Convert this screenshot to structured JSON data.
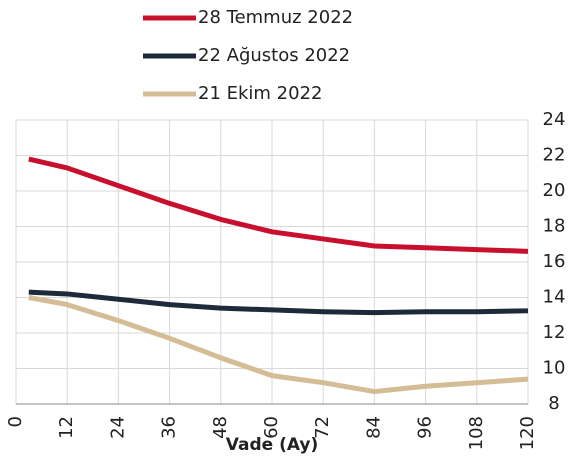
{
  "chart_data": {
    "type": "line",
    "x_label": "Vade (Ay)",
    "x": [
      3,
      12,
      24,
      36,
      48,
      60,
      72,
      84,
      96,
      108,
      120
    ],
    "series": [
      {
        "name": "28 Temmuz 2022",
        "color": "#c8102e",
        "values": [
          21.8,
          21.3,
          20.3,
          19.3,
          18.4,
          17.7,
          17.3,
          16.9,
          16.8,
          16.7,
          16.6
        ]
      },
      {
        "name": "22 Ağustos 2022",
        "color": "#1c2a3a",
        "values": [
          14.3,
          14.2,
          13.9,
          13.6,
          13.4,
          13.3,
          13.2,
          13.15,
          13.2,
          13.2,
          13.25
        ]
      },
      {
        "name": "21 Ekim 2022",
        "color": "#d4bc94",
        "values": [
          14.0,
          13.6,
          12.7,
          11.7,
          10.6,
          9.6,
          9.2,
          8.7,
          9.0,
          9.2,
          9.4
        ]
      }
    ],
    "xlim": [
      0,
      120
    ],
    "xticks": [
      0,
      12,
      24,
      36,
      48,
      60,
      72,
      84,
      96,
      108,
      120
    ],
    "ylim": [
      8,
      24
    ],
    "yticks": [
      8,
      10,
      12,
      14,
      16,
      18,
      20,
      22,
      24
    ],
    "grid": true,
    "y_axis_side": "right",
    "legend": "top"
  }
}
